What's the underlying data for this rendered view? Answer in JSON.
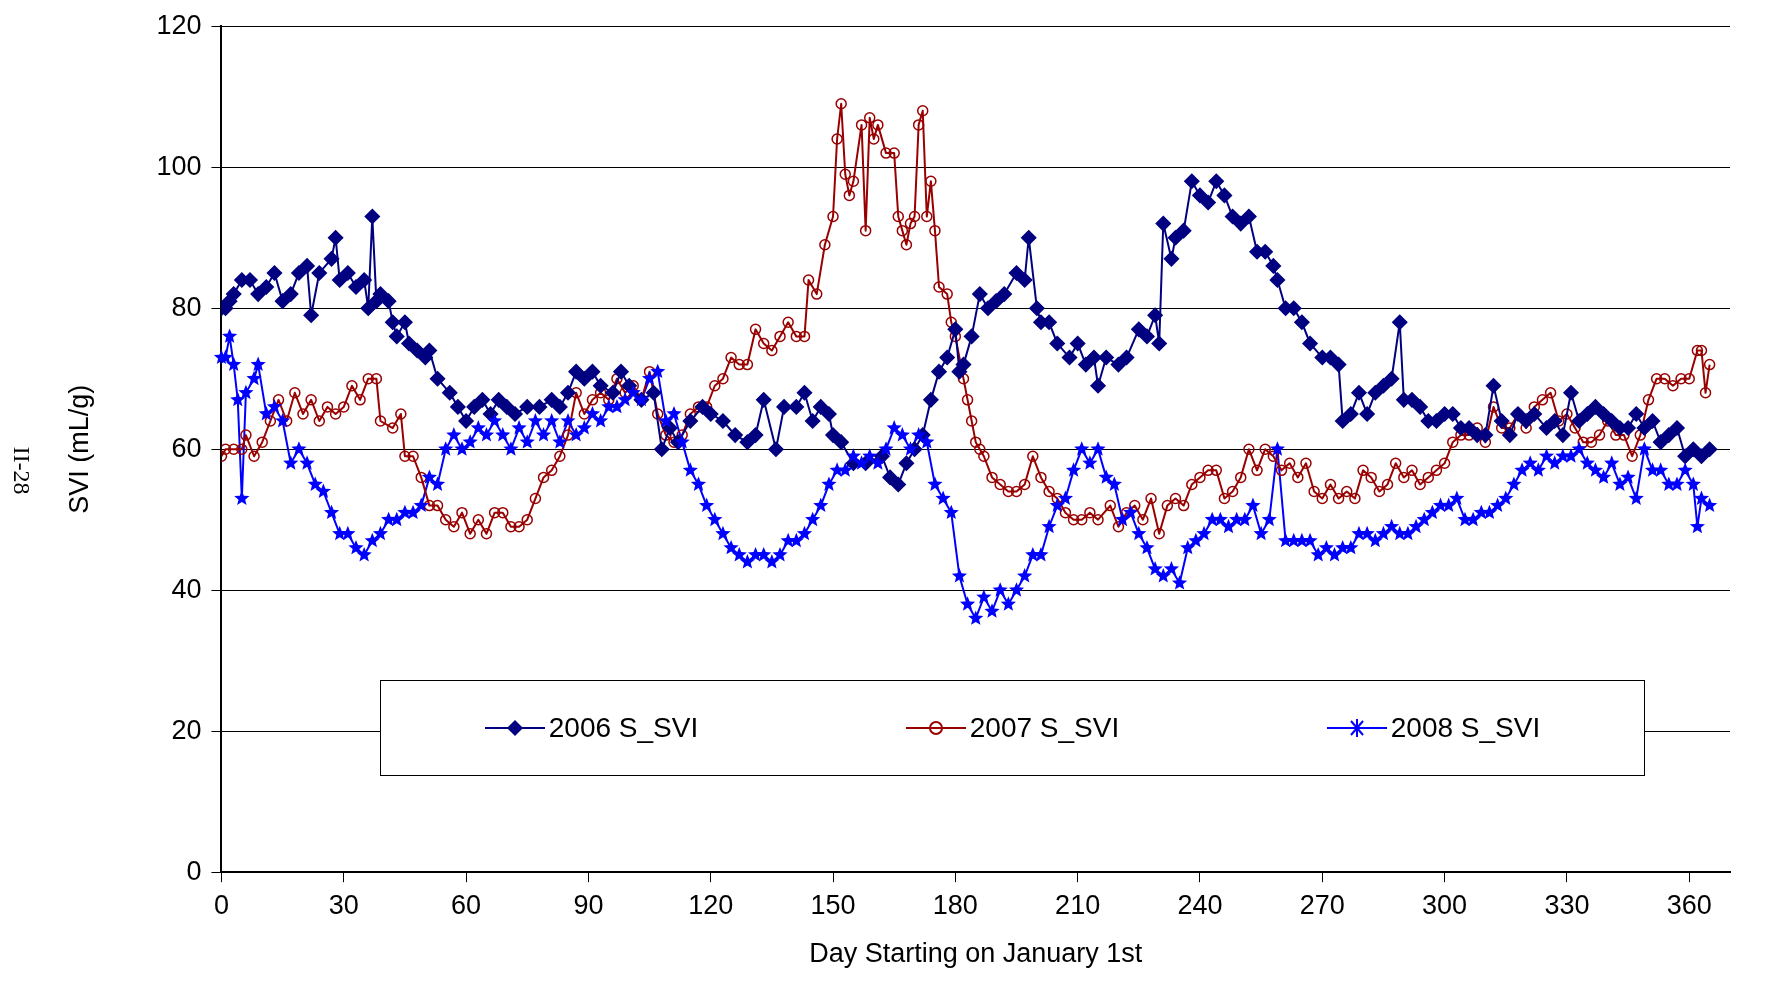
{
  "chart_data": {
    "type": "line",
    "xlabel": "Day Starting on January 1st",
    "ylabel": "SVI (mL/g)",
    "annotations": [
      "II-28"
    ],
    "xlim": [
      0,
      370
    ],
    "xticks": [
      0,
      30,
      60,
      90,
      120,
      150,
      180,
      210,
      240,
      270,
      300,
      330,
      360
    ],
    "ylim": [
      0,
      120
    ],
    "yticks": [
      0,
      20,
      40,
      60,
      80,
      100,
      120
    ],
    "grid": "y",
    "legend": "bottom",
    "series": [
      {
        "name": "2006 S_SVI",
        "color": "#000080",
        "marker": "diamond",
        "x": [
          0,
          1,
          2,
          3,
          5,
          7,
          9,
          11,
          13,
          15,
          17,
          19,
          21,
          22,
          24,
          27,
          28,
          29,
          31,
          33,
          35,
          36,
          37,
          38,
          39,
          41,
          42,
          43,
          45,
          46,
          48,
          50,
          51,
          53,
          56,
          58,
          60,
          62,
          64,
          66,
          68,
          70,
          72,
          75,
          78,
          81,
          83,
          85,
          87,
          89,
          91,
          93,
          96,
          98,
          100,
          103,
          106,
          108,
          110,
          112,
          115,
          118,
          120,
          123,
          126,
          129,
          131,
          133,
          136,
          138,
          141,
          143,
          145,
          147,
          149,
          150,
          152,
          155,
          158,
          162,
          164,
          166,
          168,
          170,
          172,
          174,
          176,
          178,
          180,
          181,
          182,
          184,
          186,
          188,
          190,
          192,
          195,
          197,
          198,
          200,
          201,
          203,
          205,
          208,
          210,
          212,
          214,
          215,
          217,
          220,
          222,
          225,
          227,
          229,
          230,
          231,
          233,
          234,
          236,
          238,
          240,
          242,
          244,
          246,
          248,
          250,
          252,
          254,
          256,
          258,
          259,
          261,
          263,
          265,
          267,
          270,
          272,
          274,
          275,
          277,
          279,
          281,
          283,
          285,
          287,
          289,
          290,
          292,
          294,
          296,
          298,
          300,
          302,
          304,
          306,
          308,
          310,
          312,
          314,
          316,
          318,
          320,
          322,
          325,
          327,
          329,
          331,
          333,
          335,
          337,
          339,
          341,
          343,
          345,
          347,
          349,
          351,
          353,
          355,
          357,
          359,
          361,
          363,
          365
        ],
        "values": [
          80,
          80,
          81,
          82,
          84,
          84,
          82,
          83,
          85,
          81,
          82,
          85,
          86,
          79,
          85,
          87,
          90,
          84,
          85,
          83,
          84,
          80,
          93,
          81,
          82,
          81,
          78,
          76,
          78,
          75,
          74,
          73,
          74,
          70,
          68,
          66,
          64,
          66,
          67,
          65,
          67,
          66,
          65,
          66,
          66,
          67,
          66,
          68,
          71,
          70,
          71,
          69,
          68,
          71,
          69,
          67,
          68,
          60,
          63,
          61,
          64,
          66,
          65,
          64,
          62,
          61,
          62,
          67,
          60,
          66,
          66,
          68,
          64,
          66,
          65,
          62,
          61,
          58,
          58,
          59,
          56,
          55,
          58,
          60,
          62,
          67,
          71,
          73,
          77,
          71,
          72,
          76,
          82,
          80,
          81,
          82,
          85,
          84,
          90,
          80,
          78,
          78,
          75,
          73,
          75,
          72,
          73,
          69,
          73,
          72,
          73,
          77,
          76,
          79,
          75,
          92,
          87,
          90,
          91,
          98,
          96,
          95,
          98,
          96,
          93,
          92,
          93,
          88,
          88,
          86,
          84,
          80,
          80,
          78,
          75,
          73,
          73,
          72,
          64,
          65,
          68,
          65,
          68,
          69,
          70,
          78,
          67,
          67,
          66,
          64,
          64,
          65,
          65,
          63,
          63,
          62,
          62,
          69,
          64,
          62,
          65,
          64,
          65,
          63,
          64,
          62,
          68,
          64,
          65,
          66,
          65,
          64,
          63,
          63,
          65,
          63,
          64,
          61,
          62,
          63,
          59,
          60,
          59,
          60
        ]
      },
      {
        "name": "2007 S_SVI",
        "color": "#990000",
        "marker": "circle",
        "x": [
          0,
          1,
          3,
          5,
          6,
          8,
          10,
          12,
          14,
          16,
          18,
          20,
          22,
          24,
          26,
          28,
          30,
          32,
          34,
          36,
          38,
          39,
          42,
          44,
          45,
          47,
          49,
          51,
          53,
          55,
          57,
          59,
          61,
          63,
          65,
          67,
          69,
          71,
          73,
          75,
          77,
          79,
          81,
          83,
          85,
          87,
          89,
          91,
          93,
          95,
          97,
          99,
          101,
          103,
          105,
          107,
          109,
          111,
          113,
          115,
          117,
          119,
          121,
          123,
          125,
          127,
          129,
          131,
          133,
          135,
          137,
          139,
          141,
          143,
          144,
          146,
          148,
          150,
          151,
          152,
          153,
          154,
          155,
          157,
          158,
          159,
          160,
          161,
          163,
          165,
          166,
          167,
          168,
          169,
          170,
          171,
          172,
          173,
          174,
          175,
          176,
          178,
          179,
          180,
          182,
          183,
          184,
          185,
          186,
          187,
          189,
          191,
          193,
          195,
          197,
          199,
          201,
          203,
          205,
          207,
          209,
          211,
          213,
          215,
          218,
          220,
          222,
          224,
          226,
          228,
          230,
          232,
          234,
          236,
          238,
          240,
          242,
          244,
          246,
          248,
          250,
          252,
          254,
          256,
          258,
          260,
          262,
          264,
          266,
          268,
          270,
          272,
          274,
          276,
          278,
          280,
          282,
          284,
          286,
          288,
          290,
          292,
          294,
          296,
          298,
          300,
          302,
          304,
          306,
          308,
          310,
          312,
          314,
          316,
          318,
          320,
          322,
          324,
          326,
          328,
          330,
          332,
          334,
          336,
          338,
          340,
          342,
          344,
          346,
          348,
          350,
          352,
          354,
          356,
          358,
          360,
          362,
          363,
          364,
          365
        ],
        "values": [
          59,
          60,
          60,
          60,
          62,
          59,
          61,
          64,
          67,
          64,
          68,
          65,
          67,
          64,
          66,
          65,
          66,
          69,
          67,
          70,
          70,
          64,
          63,
          65,
          59,
          59,
          56,
          52,
          52,
          50,
          49,
          51,
          48,
          50,
          48,
          51,
          51,
          49,
          49,
          50,
          53,
          56,
          57,
          59,
          62,
          68,
          65,
          67,
          68,
          67,
          70,
          68,
          69,
          67,
          71,
          65,
          62,
          61,
          62,
          65,
          66,
          66,
          69,
          70,
          73,
          72,
          72,
          77,
          75,
          74,
          76,
          78,
          76,
          76,
          84,
          82,
          89,
          93,
          104,
          109,
          99,
          96,
          98,
          106,
          91,
          107,
          104,
          106,
          102,
          102,
          93,
          91,
          89,
          92,
          93,
          106,
          108,
          93,
          98,
          91,
          83,
          82,
          78,
          76,
          70,
          67,
          64,
          61,
          60,
          59,
          56,
          55,
          54,
          54,
          55,
          59,
          56,
          54,
          53,
          51,
          50,
          50,
          51,
          50,
          52,
          49,
          51,
          52,
          50,
          53,
          48,
          52,
          53,
          52,
          55,
          56,
          57,
          57,
          53,
          54,
          56,
          60,
          57,
          60,
          59,
          57,
          58,
          56,
          58,
          54,
          53,
          55,
          53,
          54,
          53,
          57,
          56,
          54,
          55,
          58,
          56,
          57,
          55,
          56,
          57,
          58,
          61,
          62,
          62,
          63,
          61,
          66,
          63,
          63,
          65,
          63,
          66,
          67,
          68,
          64,
          65,
          63,
          61,
          61,
          62,
          64,
          62,
          62,
          59,
          62,
          67,
          70,
          70,
          69,
          70,
          70,
          74,
          74,
          68,
          72
        ]
      },
      {
        "name": "2008 S_SVI",
        "color": "#0000ff",
        "marker": "star",
        "x": [
          0,
          1,
          2,
          3,
          4,
          5,
          6,
          8,
          9,
          11,
          13,
          15,
          17,
          19,
          21,
          23,
          25,
          27,
          29,
          31,
          33,
          35,
          37,
          39,
          41,
          43,
          45,
          47,
          49,
          51,
          53,
          55,
          57,
          59,
          61,
          63,
          65,
          67,
          69,
          71,
          73,
          75,
          77,
          79,
          81,
          83,
          85,
          87,
          89,
          91,
          93,
          95,
          97,
          99,
          101,
          103,
          105,
          107,
          109,
          111,
          113,
          115,
          117,
          119,
          121,
          123,
          125,
          127,
          129,
          131,
          133,
          135,
          137,
          139,
          141,
          143,
          145,
          147,
          149,
          151,
          153,
          155,
          157,
          159,
          161,
          163,
          165,
          167,
          169,
          171,
          173,
          175,
          177,
          179,
          181,
          183,
          185,
          187,
          189,
          191,
          193,
          195,
          197,
          199,
          201,
          203,
          205,
          207,
          209,
          211,
          213,
          215,
          217,
          219,
          221,
          223,
          225,
          227,
          229,
          231,
          233,
          235,
          237,
          239,
          241,
          243,
          245,
          247,
          249,
          251,
          253,
          255,
          257,
          259,
          261,
          263,
          265,
          267,
          269,
          271,
          273,
          275,
          277,
          279,
          281,
          283,
          285,
          287,
          289,
          291,
          293,
          295,
          297,
          299,
          301,
          303,
          305,
          307,
          309,
          311,
          313,
          315,
          317,
          319,
          321,
          323,
          325,
          327,
          329,
          331,
          333,
          335,
          337,
          339,
          341,
          343,
          345,
          347,
          349,
          351,
          353,
          355,
          357,
          359,
          361,
          362,
          363,
          365
        ],
        "values": [
          73,
          73,
          76,
          72,
          67,
          53,
          68,
          70,
          72,
          65,
          66,
          64,
          58,
          60,
          58,
          55,
          54,
          51,
          48,
          48,
          46,
          45,
          47,
          48,
          50,
          50,
          51,
          51,
          52,
          56,
          55,
          60,
          62,
          60,
          61,
          63,
          62,
          64,
          62,
          60,
          63,
          61,
          64,
          62,
          64,
          61,
          64,
          62,
          63,
          65,
          64,
          66,
          66,
          67,
          68,
          67,
          70,
          71,
          64,
          65,
          61,
          57,
          55,
          52,
          50,
          48,
          46,
          45,
          44,
          45,
          45,
          44,
          45,
          47,
          47,
          48,
          50,
          52,
          55,
          57,
          57,
          59,
          58,
          59,
          58,
          60,
          63,
          62,
          60,
          62,
          61,
          55,
          53,
          51,
          42,
          38,
          36,
          39,
          37,
          40,
          38,
          40,
          42,
          45,
          45,
          49,
          52,
          53,
          57,
          60,
          58,
          60,
          56,
          55,
          50,
          51,
          48,
          46,
          43,
          42,
          43,
          41,
          46,
          47,
          48,
          50,
          50,
          49,
          50,
          50,
          52,
          48,
          50,
          60,
          47,
          47,
          47,
          47,
          45,
          46,
          45,
          46,
          46,
          48,
          48,
          47,
          48,
          49,
          48,
          48,
          49,
          50,
          51,
          52,
          52,
          53,
          50,
          50,
          51,
          51,
          52,
          53,
          55,
          57,
          58,
          57,
          59,
          58,
          59,
          59,
          60,
          58,
          57,
          56,
          58,
          55,
          56,
          53,
          60,
          57,
          57,
          55,
          55,
          57,
          55,
          49,
          53,
          52
        ]
      }
    ]
  }
}
